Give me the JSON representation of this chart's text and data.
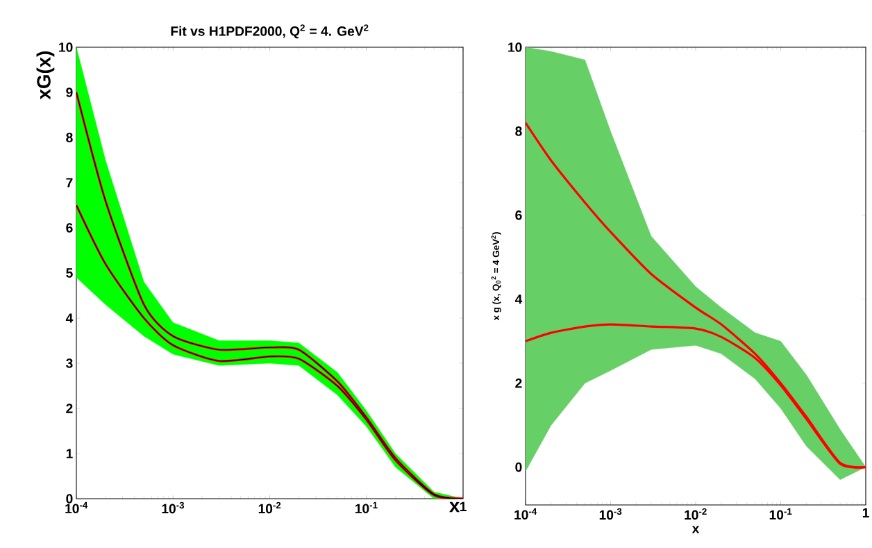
{
  "chart_data": [
    {
      "type": "line",
      "title": "Fit vs H1PDF2000, Q$^{2}$ = 4. GeV$^{2}$",
      "xlabel": "x",
      "ylabel": "xG(x)",
      "log": "x",
      "xlim": [
        0.0001,
        1
      ],
      "ylim": [
        0,
        10
      ],
      "xticks": [
        {
          "value": 0.0001,
          "label": "10$^{-4}$"
        },
        {
          "value": 0.001,
          "label": "10$^{-3}$"
        },
        {
          "value": 0.01,
          "label": "10$^{-2}$"
        },
        {
          "value": 0.1,
          "label": "10$^{-1}$"
        },
        1
      ],
      "yticks": [
        0,
        1,
        2,
        3,
        4,
        5,
        6,
        7,
        8,
        9,
        10
      ],
      "x": [
        0.0001,
        0.0002,
        0.0005,
        0.001,
        0.003,
        0.01,
        0.02,
        0.05,
        0.1,
        0.2,
        0.5,
        1
      ],
      "series": [
        {
          "color": "#00ff00",
          "values": [
            null,
            null,
            null,
            null,
            null,
            null,
            null,
            null,
            null,
            null,
            null,
            null
          ],
          "lower": [
            4.9,
            4.3,
            3.6,
            3.2,
            2.95,
            3.0,
            2.95,
            2.3,
            1.6,
            0.7,
            0,
            0
          ],
          "upper": [
            10,
            7.5,
            4.8,
            3.9,
            3.5,
            3.5,
            3.45,
            2.8,
            1.95,
            1.0,
            0.15,
            0
          ]
        },
        {
          "color": "#ff0000",
          "values": [
            9.0,
            6.6,
            4.3,
            3.6,
            3.3,
            3.35,
            3.3,
            2.6,
            1.8,
            0.9,
            0.1,
            0
          ]
        },
        {
          "color": "#ff0000",
          "values": [
            6.5,
            5.2,
            4.0,
            3.4,
            3.05,
            3.15,
            3.1,
            2.5,
            1.75,
            0.85,
            0.08,
            0
          ]
        },
        {
          "color": "#000000",
          "values": [
            9.0,
            6.6,
            4.3,
            3.6,
            3.3,
            3.35,
            3.3,
            2.6,
            1.8,
            0.9,
            0.1,
            0
          ]
        },
        {
          "color": "#000000",
          "values": [
            6.5,
            5.2,
            4.0,
            3.4,
            3.05,
            3.15,
            3.1,
            2.5,
            1.75,
            0.85,
            0.08,
            0
          ]
        }
      ]
    },
    {
      "type": "line",
      "xlabel": "x",
      "ylabel": "x g (x, Q$_{0}$$^{2}$ = 4 GeV$^{2}$)",
      "log": "x",
      "xlim": [
        0.0001,
        1
      ],
      "ylim": [
        -0.9,
        10
      ],
      "xticks": [
        {
          "value": 0.0001,
          "label": "10$^{-4}$"
        },
        {
          "value": 0.001,
          "label": "10$^{-3}$"
        },
        {
          "value": 0.01,
          "label": "10$^{-2}$"
        },
        {
          "value": 0.1,
          "label": "10$^{-1}$"
        },
        1
      ],
      "yticks": [
        0,
        2,
        4,
        6,
        8,
        10
      ],
      "x": [
        0.0001,
        0.0002,
        0.0005,
        0.001,
        0.003,
        0.01,
        0.02,
        0.05,
        0.1,
        0.2,
        0.5,
        1
      ],
      "series": [
        {
          "color": "#66d066",
          "values": [
            null,
            null,
            null,
            null,
            null,
            null,
            null,
            null,
            null,
            null,
            null,
            null
          ],
          "lower": [
            -0.1,
            1.0,
            2.0,
            2.3,
            2.8,
            2.9,
            2.7,
            2.1,
            1.4,
            0.5,
            -0.3,
            0
          ],
          "upper": [
            10,
            9.9,
            9.7,
            8,
            5.5,
            4.3,
            3.8,
            3.2,
            3.0,
            2.2,
            0.9,
            0
          ]
        },
        {
          "color": "#ff0000",
          "values": [
            8.2,
            7.3,
            6.3,
            5.6,
            4.6,
            3.8,
            3.4,
            2.7,
            2.0,
            1.2,
            0.1,
            0
          ]
        },
        {
          "color": "#ff0000",
          "values": [
            3.0,
            3.2,
            3.35,
            3.4,
            3.35,
            3.3,
            3.1,
            2.6,
            1.95,
            1.15,
            0.08,
            0
          ]
        }
      ]
    }
  ]
}
